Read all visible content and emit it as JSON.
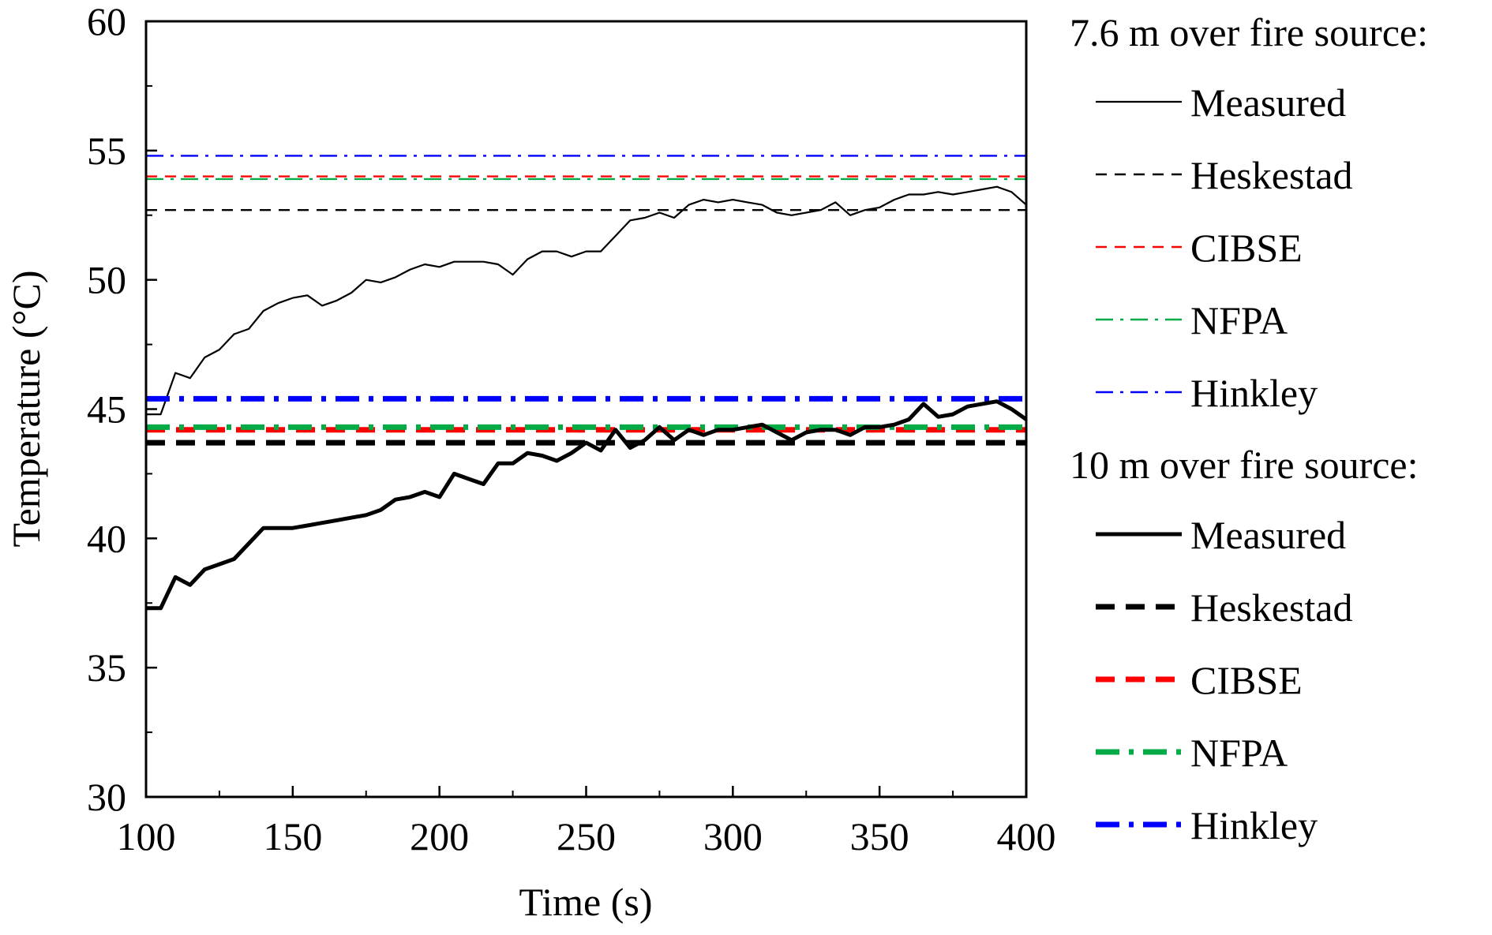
{
  "chart_data": {
    "type": "line",
    "xlabel": "Time (s)",
    "ylabel": "Temperature (°C)",
    "xlim": [
      100,
      400
    ],
    "ylim": [
      30,
      60
    ],
    "xticks": [
      100,
      150,
      200,
      250,
      300,
      350,
      400
    ],
    "yticks": [
      30,
      35,
      40,
      45,
      50,
      55,
      60
    ],
    "legend_position": "right",
    "groups": [
      {
        "title": "7.6 m over fire source:",
        "series": [
          {
            "name": "Measured",
            "kind": "measured",
            "color": "#000000",
            "style": "solid",
            "weight": "thin",
            "x": [
              100,
              105,
              110,
              115,
              120,
              125,
              130,
              135,
              140,
              145,
              150,
              155,
              160,
              165,
              170,
              175,
              180,
              185,
              190,
              195,
              200,
              205,
              210,
              215,
              220,
              225,
              230,
              235,
              240,
              245,
              250,
              255,
              260,
              265,
              270,
              275,
              280,
              285,
              290,
              295,
              300,
              305,
              310,
              315,
              320,
              325,
              330,
              335,
              340,
              345,
              350,
              355,
              360,
              365,
              370,
              375,
              380,
              385,
              390,
              395,
              400
            ],
            "y": [
              44.8,
              44.8,
              46.4,
              46.2,
              47.0,
              47.3,
              47.9,
              48.1,
              48.8,
              49.1,
              49.3,
              49.4,
              49.0,
              49.2,
              49.5,
              50.0,
              49.9,
              50.1,
              50.4,
              50.6,
              50.5,
              50.7,
              50.7,
              50.7,
              50.6,
              50.2,
              50.8,
              51.1,
              51.1,
              50.9,
              51.1,
              51.1,
              51.7,
              52.3,
              52.4,
              52.6,
              52.4,
              52.9,
              53.1,
              53.0,
              53.1,
              53.0,
              52.9,
              52.6,
              52.5,
              52.6,
              52.7,
              53.0,
              52.5,
              52.7,
              52.8,
              53.1,
              53.3,
              53.3,
              53.4,
              53.3,
              53.4,
              53.5,
              53.6,
              53.4,
              52.9
            ]
          },
          {
            "name": "Heskestad",
            "kind": "model",
            "color": "#000000",
            "style": "dash",
            "weight": "thin",
            "x": [
              100,
              400
            ],
            "y": [
              52.7,
              52.7
            ]
          },
          {
            "name": "CIBSE",
            "kind": "model",
            "color": "#ff0000",
            "style": "dash",
            "weight": "thin",
            "x": [
              100,
              400
            ],
            "y": [
              54.0,
              54.0
            ]
          },
          {
            "name": "NFPA",
            "kind": "model",
            "color": "#00aa44",
            "style": "dashdot",
            "weight": "thin",
            "x": [
              100,
              400
            ],
            "y": [
              53.9,
              53.9
            ]
          },
          {
            "name": "Hinkley",
            "kind": "model",
            "color": "#0000ff",
            "style": "dashdot",
            "weight": "thin",
            "x": [
              100,
              400
            ],
            "y": [
              54.8,
              54.8
            ]
          }
        ]
      },
      {
        "title": "10 m over fire source:",
        "series": [
          {
            "name": "Measured",
            "kind": "measured",
            "color": "#000000",
            "style": "solid",
            "weight": "thick",
            "x": [
              100,
              105,
              110,
              115,
              120,
              125,
              130,
              135,
              140,
              145,
              150,
              155,
              160,
              165,
              170,
              175,
              180,
              185,
              190,
              195,
              200,
              205,
              210,
              215,
              220,
              225,
              230,
              235,
              240,
              245,
              250,
              255,
              260,
              265,
              270,
              275,
              280,
              285,
              290,
              295,
              300,
              305,
              310,
              315,
              320,
              325,
              330,
              335,
              340,
              345,
              350,
              355,
              360,
              365,
              370,
              375,
              380,
              385,
              390,
              395,
              400
            ],
            "y": [
              37.3,
              37.3,
              38.5,
              38.2,
              38.8,
              39.0,
              39.2,
              39.8,
              40.4,
              40.4,
              40.4,
              40.5,
              40.6,
              40.7,
              40.8,
              40.9,
              41.1,
              41.5,
              41.6,
              41.8,
              41.6,
              42.5,
              42.3,
              42.1,
              42.9,
              42.9,
              43.3,
              43.2,
              43.0,
              43.3,
              43.7,
              43.4,
              44.2,
              43.5,
              43.8,
              44.3,
              43.8,
              44.2,
              44.0,
              44.2,
              44.2,
              44.3,
              44.4,
              44.1,
              43.8,
              44.1,
              44.2,
              44.2,
              44.0,
              44.3,
              44.3,
              44.4,
              44.6,
              45.2,
              44.7,
              44.8,
              45.1,
              45.2,
              45.3,
              45.0,
              44.6
            ]
          },
          {
            "name": "Heskestad",
            "kind": "model",
            "color": "#000000",
            "style": "dash",
            "weight": "thick",
            "x": [
              100,
              400
            ],
            "y": [
              43.7,
              43.7
            ]
          },
          {
            "name": "CIBSE",
            "kind": "model",
            "color": "#ff0000",
            "style": "dash",
            "weight": "thick",
            "x": [
              100,
              400
            ],
            "y": [
              44.2,
              44.2
            ]
          },
          {
            "name": "NFPA",
            "kind": "model",
            "color": "#00aa44",
            "style": "dashdot",
            "weight": "thick",
            "x": [
              100,
              400
            ],
            "y": [
              44.3,
              44.3
            ]
          },
          {
            "name": "Hinkley",
            "kind": "model",
            "color": "#0000ff",
            "style": "dashdot",
            "weight": "thick",
            "x": [
              100,
              400
            ],
            "y": [
              45.4,
              45.4
            ]
          }
        ]
      }
    ]
  }
}
